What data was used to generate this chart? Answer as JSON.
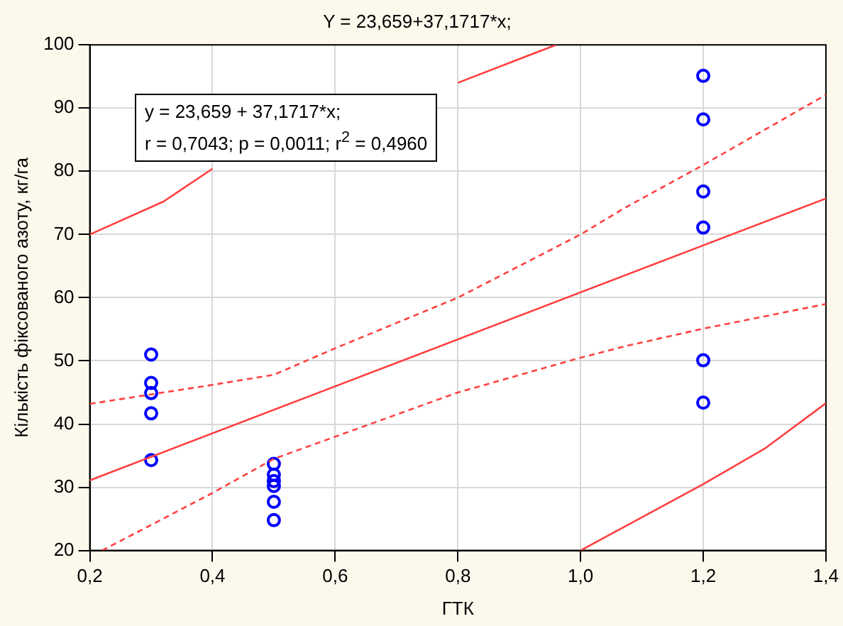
{
  "chart_data": {
    "type": "scatter",
    "title": "Y = 23,659+37,1717*x;",
    "xlabel": "ГТК",
    "ylabel": "Кількість фіксованого азоту, кг/га",
    "xlim": [
      0.2,
      1.4
    ],
    "xticks": [
      {
        "value": 0.2,
        "label": "0,2"
      },
      {
        "value": 0.4,
        "label": "0,4"
      },
      {
        "value": 0.6,
        "label": "0,6"
      },
      {
        "value": 0.8,
        "label": "0,8"
      },
      {
        "value": 1.0,
        "label": "1,0"
      },
      {
        "value": 1.2,
        "label": "1,2"
      },
      {
        "value": 1.4,
        "label": "1,4"
      }
    ],
    "ylim": [
      20,
      100
    ],
    "yticks": [
      20,
      30,
      40,
      50,
      60,
      70,
      80,
      90,
      100
    ],
    "grid": true,
    "legend": false,
    "annotations": [
      "y = 23,659 + 37,1717*x;",
      "r = 0,7043; p = 0,0011; r$^{2}$ = 0,4960"
    ],
    "series": [
      {
        "type": "line",
        "color": "#ff4040",
        "line_style": "solid",
        "x": [
          0.2,
          0.32,
          0.4,
          0.6,
          0.8,
          0.96
        ],
        "values": [
          70,
          75.2,
          80.4,
          null,
          94,
          100
        ]
      },
      {
        "type": "line",
        "color": "#ff4040",
        "line_style": "dashed",
        "x": [
          0.2,
          0.4,
          0.5,
          0.6,
          0.8,
          1.0,
          1.072,
          1.2,
          1.4
        ],
        "values": [
          43.2,
          46.2,
          47.8,
          52,
          60,
          70,
          74.2,
          81,
          92.1
        ]
      },
      {
        "type": "line",
        "color": "#ff4040",
        "line_style": "solid",
        "x": [
          0.2,
          1.4
        ],
        "values": [
          31.1,
          75.7
        ]
      },
      {
        "type": "line",
        "color": "#ff4040",
        "line_style": "dashed",
        "x": [
          0.22,
          0.4,
          0.5,
          0.6,
          0.8,
          1.0,
          1.072,
          1.2,
          1.4
        ],
        "values": [
          20,
          29.1,
          34.5,
          38,
          45,
          50.5,
          52.3,
          55.1,
          59
        ]
      },
      {
        "type": "line",
        "color": "#ff4040",
        "line_style": "solid",
        "x": [
          1.0,
          1.2,
          1.3,
          1.4
        ],
        "values": [
          20,
          30.5,
          36.1,
          43.3
        ]
      },
      {
        "color": "#0000ff",
        "marker": "circle",
        "x": [
          0.3,
          0.3,
          0.3,
          0.3,
          0.3,
          0.5,
          0.5,
          0.5,
          0.5,
          0.5,
          0.5,
          1.2,
          1.2,
          1.2,
          1.2,
          1.2,
          1.2
        ],
        "values": [
          51,
          46.5,
          44.9,
          41.7,
          34.3,
          33.7,
          32,
          31,
          30.2,
          27.7,
          24.8,
          95.1,
          88.2,
          76.8,
          71.1,
          50.1,
          43.4
        ]
      }
    ]
  }
}
